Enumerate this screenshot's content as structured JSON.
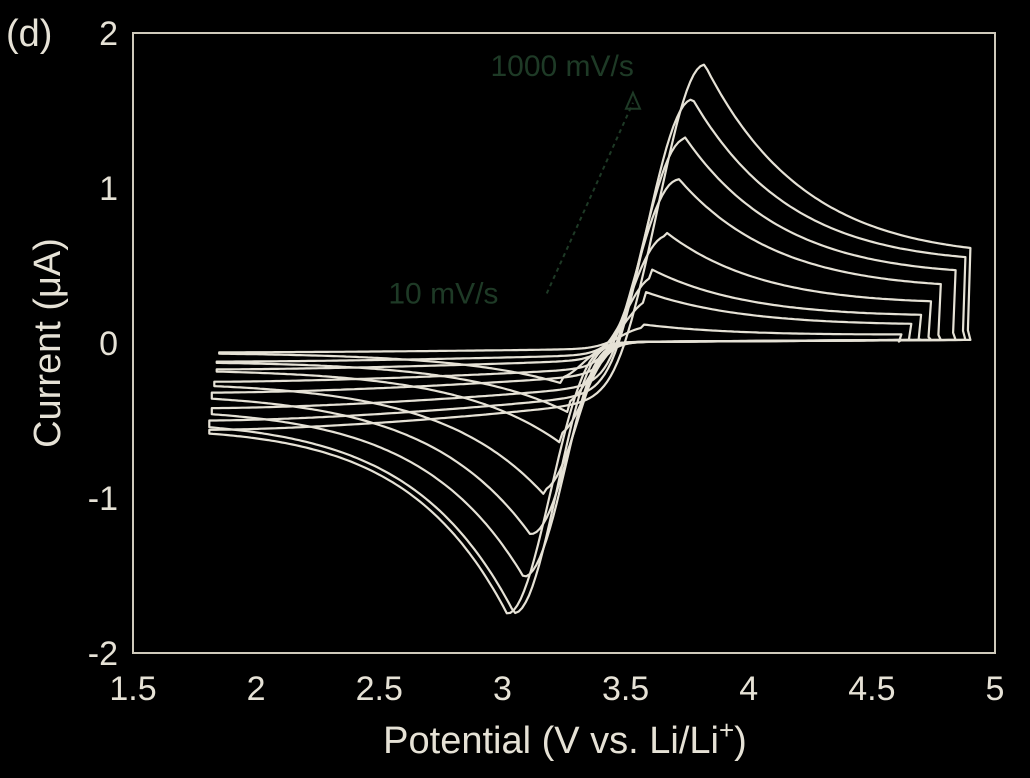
{
  "chart_data": {
    "type": "line",
    "panel_label": "(d)",
    "xlabel": "Potential (V vs. Li/Li",
    "xlabel_sup": "+",
    "xlabel_close": ")",
    "ylabel": "Current (μA)",
    "xlim": [
      1.5,
      5
    ],
    "ylim": [
      -2,
      2
    ],
    "xticks": [
      "1.5",
      "2",
      "2.5",
      "3",
      "3.5",
      "4",
      "4.5",
      "5"
    ],
    "yticks": [
      "2",
      "1",
      "0",
      "-1",
      "-2"
    ],
    "annotations": [
      {
        "text": "1000 mV/s",
        "x": 3.55,
        "y": 1.75
      },
      {
        "text": "10 mV/s",
        "x": 3.0,
        "y": 0.28
      }
    ],
    "grid": false,
    "line_color": "#e6e2d6",
    "annotation_color": "#1e3a26",
    "series": [
      {
        "ox_peak": [
          3.57,
          0.12
        ],
        "red_peak": [
          3.24,
          -0.26
        ],
        "x_min": 1.85,
        "x_max": 4.62,
        "start_i": -0.06,
        "end_i": 0.06
      },
      {
        "ox_peak": [
          3.58,
          0.33
        ],
        "red_peak": [
          3.27,
          -0.45
        ],
        "x_min": 1.84,
        "x_max": 4.66,
        "start_i": -0.12,
        "end_i": 0.12
      },
      {
        "ox_peak": [
          3.6,
          0.48
        ],
        "red_peak": [
          3.24,
          -0.65
        ],
        "x_min": 1.84,
        "x_max": 4.7,
        "start_i": -0.17,
        "end_i": 0.18
      },
      {
        "ox_peak": [
          3.66,
          0.72
        ],
        "red_peak": [
          3.17,
          -0.98
        ],
        "x_min": 1.83,
        "x_max": 4.74,
        "start_i": -0.25,
        "end_i": 0.26
      },
      {
        "ox_peak": [
          3.71,
          1.07
        ],
        "red_peak": [
          3.12,
          -1.25
        ],
        "x_min": 1.82,
        "x_max": 4.78,
        "start_i": -0.32,
        "end_i": 0.35
      },
      {
        "ox_peak": [
          3.74,
          1.33
        ],
        "red_peak": [
          3.09,
          -1.52
        ],
        "x_min": 1.82,
        "x_max": 4.84,
        "start_i": -0.42,
        "end_i": 0.44
      },
      {
        "ox_peak": [
          3.77,
          1.58
        ],
        "red_peak": [
          3.05,
          -1.75
        ],
        "x_min": 1.81,
        "x_max": 4.88,
        "start_i": -0.5,
        "end_i": 0.52
      },
      {
        "ox_peak": [
          3.82,
          1.8
        ],
        "red_peak": [
          3.02,
          -1.75
        ],
        "x_min": 1.81,
        "x_max": 4.9,
        "start_i": -0.56,
        "end_i": 0.55
      }
    ]
  }
}
